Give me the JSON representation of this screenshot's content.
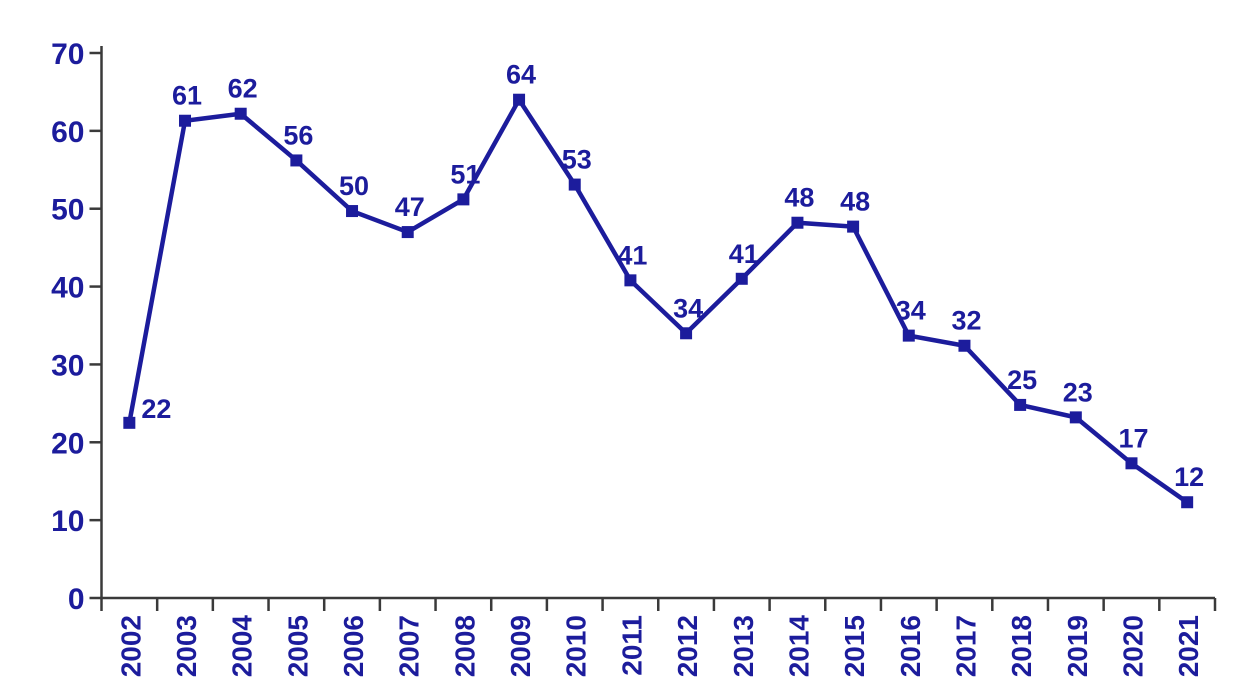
{
  "chart_data": {
    "type": "line",
    "title": "",
    "xlabel": "",
    "ylabel": "",
    "categories": [
      "2002",
      "2003",
      "2004",
      "2005",
      "2006",
      "2007",
      "2008",
      "2009",
      "2010",
      "2011",
      "2012",
      "2013",
      "2014",
      "2015",
      "2016",
      "2017",
      "2018",
      "2019",
      "2020",
      "2021"
    ],
    "values": [
      22,
      61,
      62,
      56,
      50,
      47,
      51,
      64,
      53,
      41,
      34,
      41,
      48,
      48,
      34,
      32,
      25,
      23,
      17,
      12
    ],
    "plotted_values": [
      22.5,
      61.3,
      62.2,
      56.2,
      49.7,
      47.0,
      51.2,
      64.0,
      53.1,
      40.8,
      34.0,
      41.0,
      48.2,
      47.7,
      33.7,
      32.4,
      24.8,
      23.2,
      17.3,
      12.3
    ],
    "ylim": [
      0,
      70
    ],
    "yticks": [
      0,
      10,
      20,
      30,
      40,
      50,
      60,
      70
    ],
    "grid": false,
    "legend": null,
    "marker": "square",
    "data_labels": true,
    "label_placement": {
      "default": "above",
      "overrides": {
        "0": "right"
      }
    },
    "colors": {
      "series": "#1c1c9c",
      "data_labels": "#1c1c9c",
      "tick_labels": "#1c1c9c",
      "axis": "#3a3a3a",
      "background": "#ffffff"
    }
  }
}
